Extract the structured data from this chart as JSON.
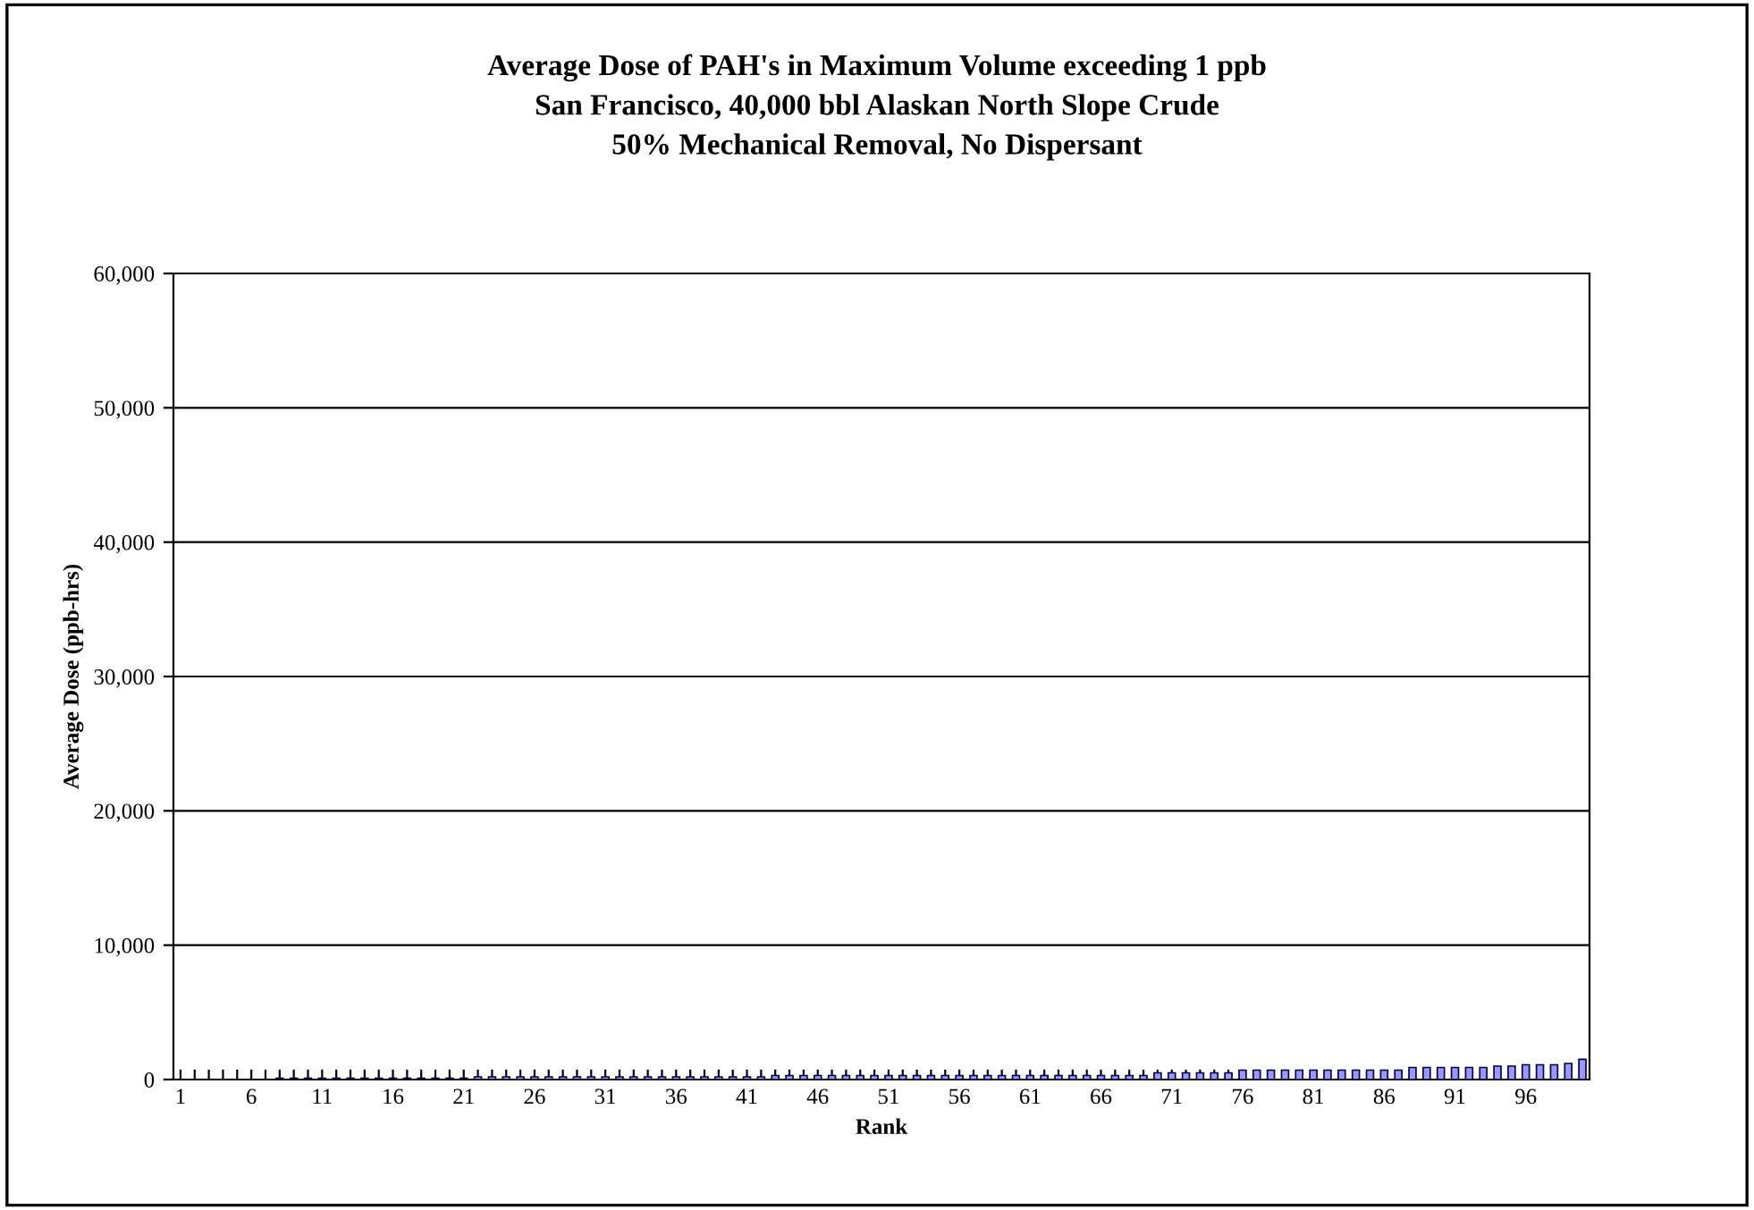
{
  "chart_data": {
    "type": "bar",
    "title": "Average Dose of PAH's in Maximum Volume exceeding 1 ppb\nSan Francisco, 40,000 bbl Alaskan North Slope Crude\n50% Mechanical Removal, No Dispersant",
    "xlabel": "Rank",
    "ylabel": "Average Dose (ppb-hrs)",
    "categories": [
      "1",
      null,
      null,
      null,
      null,
      "6",
      null,
      null,
      null,
      null,
      "11",
      null,
      null,
      null,
      null,
      "16",
      null,
      null,
      null,
      null,
      "21",
      null,
      null,
      null,
      null,
      "26",
      null,
      null,
      null,
      null,
      "31",
      null,
      null,
      null,
      null,
      "36",
      null,
      null,
      null,
      null,
      "41",
      null,
      null,
      null,
      null,
      "46",
      null,
      null,
      null,
      null,
      "51",
      null,
      null,
      null,
      null,
      "56",
      null,
      null,
      null,
      null,
      "61",
      null,
      null,
      null,
      null,
      "66",
      null,
      null,
      null,
      null,
      "71",
      null,
      null,
      null,
      null,
      "76",
      null,
      null,
      null,
      null,
      "81",
      null,
      null,
      null,
      null,
      "86",
      null,
      null,
      null,
      null,
      "91",
      null,
      null,
      null,
      null,
      "96",
      null,
      null,
      null,
      null
    ],
    "values": [
      0,
      0,
      0,
      0,
      0,
      0,
      0,
      100,
      100,
      100,
      100,
      100,
      100,
      100,
      100,
      100,
      100,
      100,
      100,
      100,
      100,
      200,
      200,
      200,
      200,
      200,
      200,
      200,
      200,
      200,
      200,
      200,
      200,
      200,
      200,
      200,
      200,
      200,
      200,
      200,
      200,
      200,
      300,
      300,
      300,
      300,
      300,
      300,
      300,
      300,
      300,
      300,
      300,
      300,
      300,
      300,
      300,
      300,
      300,
      300,
      300,
      300,
      300,
      300,
      300,
      300,
      300,
      300,
      300,
      500,
      500,
      500,
      500,
      500,
      500,
      700,
      700,
      700,
      700,
      700,
      700,
      700,
      700,
      700,
      700,
      700,
      700,
      900,
      900,
      900,
      900,
      900,
      900,
      1000,
      1000,
      1100,
      1100,
      1100,
      1200,
      1500
    ],
    "color": "#9999ff",
    "ylim": [
      0,
      60000
    ],
    "yticks": [
      {
        "value": 0,
        "label": "0"
      },
      {
        "value": 10000,
        "label": "10,000"
      },
      {
        "value": 20000,
        "label": "20,000"
      },
      {
        "value": 30000,
        "label": "30,000"
      },
      {
        "value": 40000,
        "label": "40,000"
      },
      {
        "value": 50000,
        "label": "50,000"
      },
      {
        "value": 60000,
        "label": "60,000"
      }
    ],
    "grid": "y",
    "legend": false
  }
}
